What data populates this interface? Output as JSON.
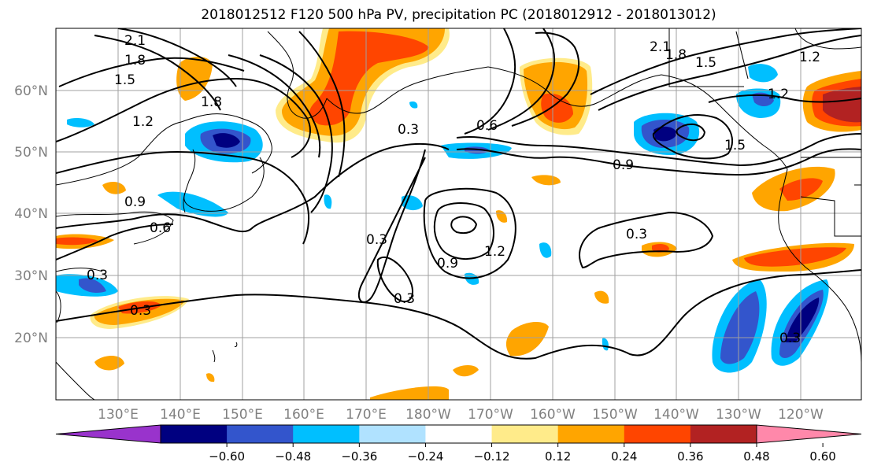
{
  "title": "2018012512 F120 500 hPa PV, precipitation PC (2018012912 - 2018013012)",
  "latitude_labels": [
    "60°N",
    "50°N",
    "40°N",
    "30°N",
    "20°N"
  ],
  "longitude_labels": [
    "130°E",
    "140°E",
    "150°E",
    "160°E",
    "170°E",
    "180°W",
    "170°W",
    "160°W",
    "150°W",
    "140°W",
    "130°W",
    "120°W"
  ],
  "contour_labels": [
    "2.1",
    "1.8",
    "1.5",
    "1.2",
    "1.8",
    "0.9",
    "0.6",
    "0.3",
    "0.3",
    "0.3",
    "0.6",
    "1.2",
    "0.9",
    "0.3",
    "0.3",
    "2.1",
    "1.8",
    "1.5",
    "1.2",
    "1.2",
    "0.9",
    "0.3",
    "0.3",
    "1.5"
  ],
  "colorbar": {
    "tick_labels": [
      "−0.60",
      "−0.48",
      "−0.36",
      "−0.24",
      "−0.12",
      "0.12",
      "0.24",
      "0.36",
      "0.48",
      "0.60"
    ],
    "colors": [
      "#9933cc",
      "#000080",
      "#3355cc",
      "#00bfff",
      "#b0e2ff",
      "#ffffff",
      "#ffeb8a",
      "#ffa500",
      "#ff4500",
      "#b22222",
      "#ff88aa"
    ]
  }
}
